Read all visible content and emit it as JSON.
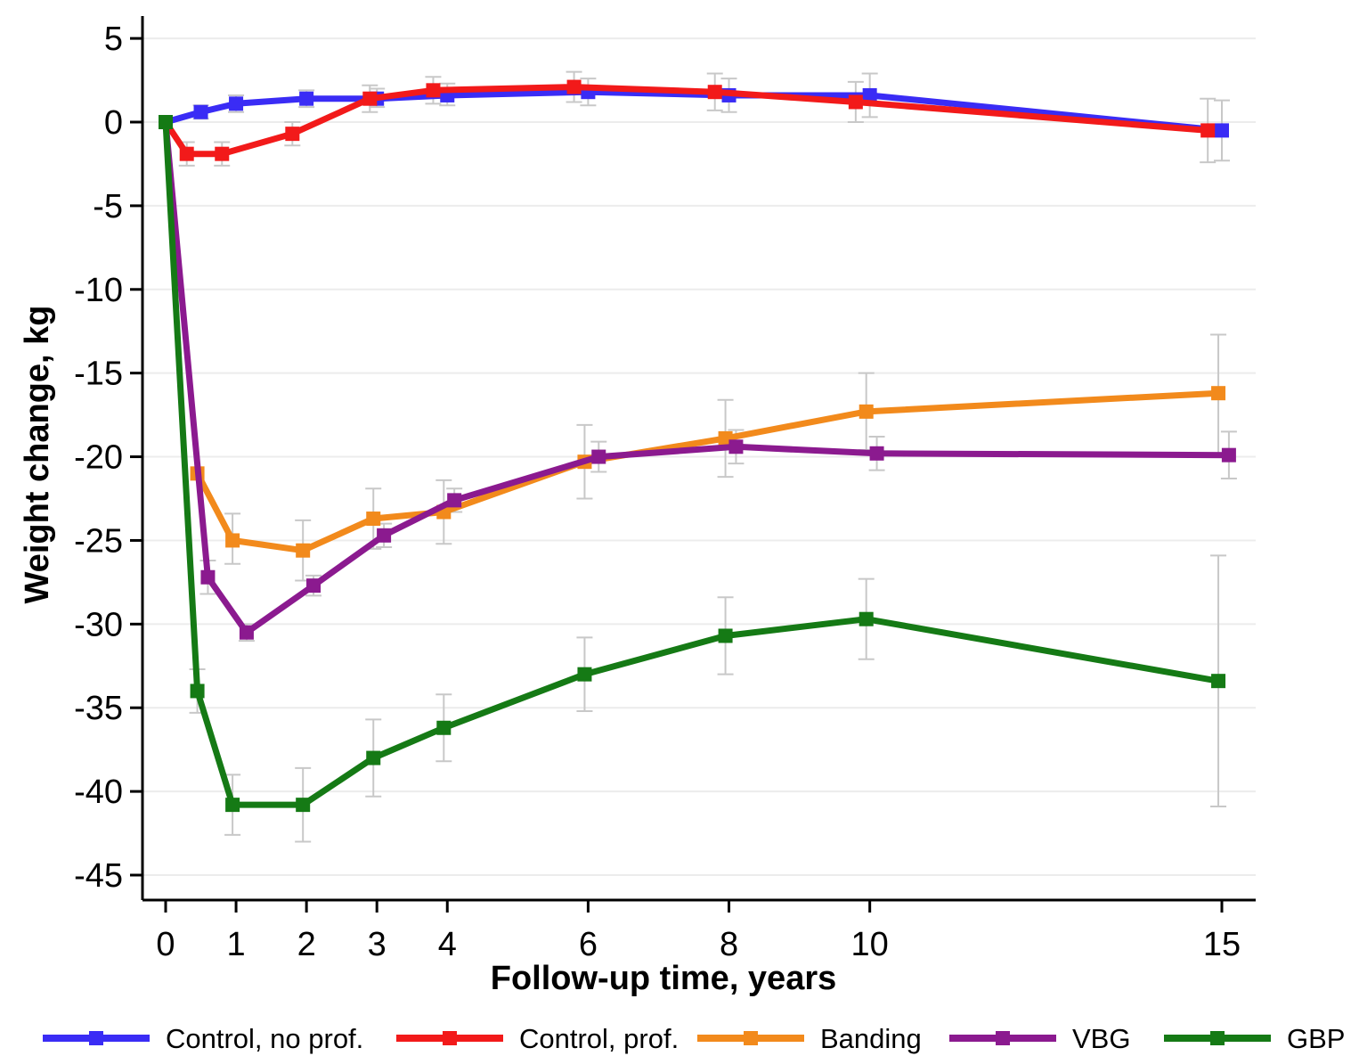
{
  "chart_data": {
    "type": "line",
    "xlabel": "Follow-up time, years",
    "ylabel": "Weight change, kg",
    "xlim": [
      -0.3,
      15.5
    ],
    "ylim": [
      -46.5,
      6.5
    ],
    "xticks": [
      0,
      1,
      2,
      3,
      4,
      6,
      8,
      10,
      15
    ],
    "yticks": [
      5,
      0,
      -5,
      -10,
      -15,
      -20,
      -25,
      -30,
      -35,
      -40,
      -45
    ],
    "grid": "horizontal",
    "legend_position": "bottom",
    "errorbar_color": "#c8c8c8",
    "series": [
      {
        "name": "Control, no prof.",
        "color": "#3a2cf5",
        "x": [
          0,
          0.5,
          1,
          2,
          3,
          4,
          6,
          8,
          10,
          15
        ],
        "y": [
          0,
          0.6,
          1.1,
          1.4,
          1.4,
          1.6,
          1.8,
          1.6,
          1.6,
          -0.5
        ],
        "ci": [
          null,
          [
            0.2,
            1.0
          ],
          [
            0.6,
            1.6
          ],
          [
            0.9,
            1.9
          ],
          [
            0.9,
            2.0
          ],
          [
            1.0,
            2.3
          ],
          [
            1.0,
            2.6
          ],
          [
            0.6,
            2.6
          ],
          [
            0.3,
            2.9
          ],
          [
            -2.3,
            1.3
          ]
        ]
      },
      {
        "name": "Control, prof.",
        "color": "#f21a1a",
        "x": [
          0,
          0.3,
          0.8,
          1.8,
          2.9,
          3.8,
          5.8,
          7.8,
          9.8,
          14.8
        ],
        "y": [
          0,
          -1.9,
          -1.9,
          -0.7,
          1.4,
          1.9,
          2.1,
          1.8,
          1.2,
          -0.5
        ],
        "ci": [
          null,
          [
            -2.6,
            -1.2
          ],
          [
            -2.6,
            -1.2
          ],
          [
            -1.4,
            0.0
          ],
          [
            0.6,
            2.2
          ],
          [
            1.1,
            2.7
          ],
          [
            1.2,
            3.0
          ],
          [
            0.7,
            2.9
          ],
          [
            0.0,
            2.4
          ],
          [
            -2.4,
            1.4
          ]
        ]
      },
      {
        "name": "Banding",
        "color": "#f28a1c",
        "x": [
          0.45,
          0.95,
          1.95,
          2.95,
          3.95,
          5.95,
          7.95,
          9.95,
          14.95
        ],
        "y": [
          -21.0,
          -25.0,
          -25.6,
          -23.7,
          -23.3,
          -20.3,
          -18.9,
          -17.3,
          -16.2
        ],
        "ci": [
          null,
          [
            -26.4,
            -23.4
          ],
          [
            -27.4,
            -23.8
          ],
          [
            -25.5,
            -21.9
          ],
          [
            -25.2,
            -21.4
          ],
          [
            -22.5,
            -18.1
          ],
          [
            -21.2,
            -16.6
          ],
          [
            -19.6,
            -15.0
          ],
          [
            -20.0,
            -12.7
          ]
        ]
      },
      {
        "name": "VBG",
        "color": "#8b1a8f",
        "x": [
          0,
          0.6,
          1.15,
          2.1,
          3.1,
          4.1,
          6.15,
          8.1,
          10.1,
          15.1
        ],
        "y": [
          0,
          -27.2,
          -30.5,
          -27.7,
          -24.7,
          -22.6,
          -20.0,
          -19.4,
          -19.8,
          -19.9
        ],
        "ci": [
          null,
          [
            -28.2,
            -26.2
          ],
          [
            -31.0,
            -30.0
          ],
          [
            -28.3,
            -27.1
          ],
          [
            -25.4,
            -24.0
          ],
          [
            -23.3,
            -21.9
          ],
          [
            -20.9,
            -19.1
          ],
          [
            -20.4,
            -18.4
          ],
          [
            -20.8,
            -18.8
          ],
          [
            -21.3,
            -18.5
          ]
        ]
      },
      {
        "name": "GBP",
        "color": "#157a15",
        "x": [
          0,
          0.45,
          0.95,
          1.95,
          2.95,
          3.95,
          5.95,
          7.95,
          9.95,
          14.95
        ],
        "y": [
          0,
          -34.0,
          -40.8,
          -40.8,
          -38.0,
          -36.2,
          -33.0,
          -30.7,
          -29.7,
          -33.4
        ],
        "ci": [
          null,
          [
            -35.3,
            -32.7
          ],
          [
            -42.6,
            -39.0
          ],
          [
            -43.0,
            -38.6
          ],
          [
            -40.3,
            -35.7
          ],
          [
            -38.2,
            -34.2
          ],
          [
            -35.2,
            -30.8
          ],
          [
            -33.0,
            -28.4
          ],
          [
            -32.1,
            -27.3
          ],
          [
            -40.9,
            -25.9
          ]
        ]
      }
    ]
  }
}
